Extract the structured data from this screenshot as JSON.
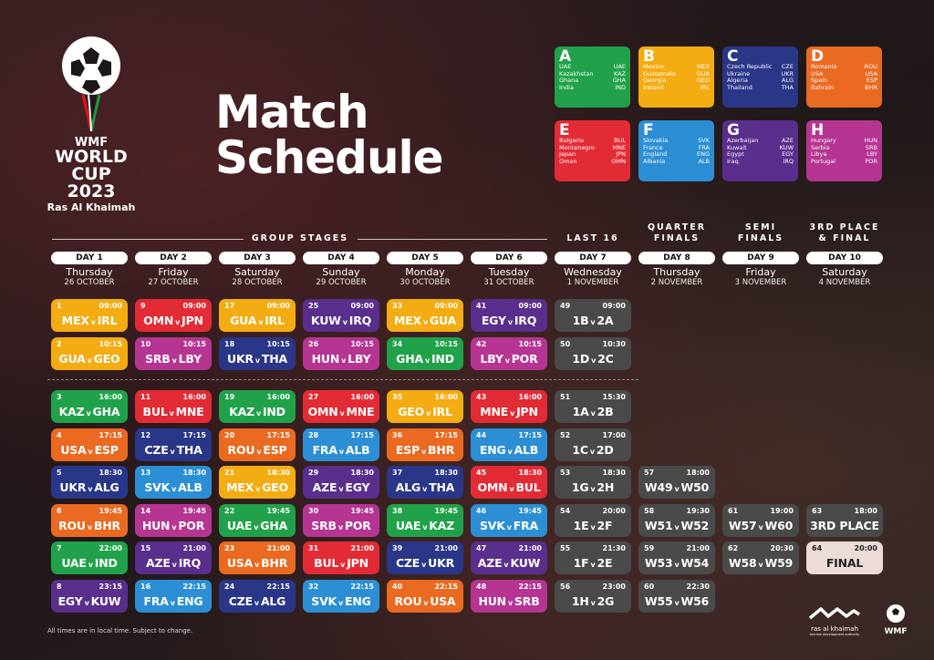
{
  "logo": {
    "wmf": "WMF",
    "world": "WORLD",
    "cup": "CUP 2023",
    "city": "Ras Al Khaimah"
  },
  "title_line1": "Match",
  "title_line2": "Schedule",
  "groups": [
    {
      "letter": "A",
      "color": "#21a24a",
      "rows": [
        [
          "UAE",
          "UAE"
        ],
        [
          "Kazakhstan",
          "KAZ"
        ],
        [
          "Ghana",
          "GHA"
        ],
        [
          "India",
          "IND"
        ]
      ]
    },
    {
      "letter": "B",
      "color": "#f4ac13",
      "rows": [
        [
          "Mexico",
          "MEX"
        ],
        [
          "Guatemala",
          "GUA"
        ],
        [
          "Georgia",
          "GEO"
        ],
        [
          "Ireland",
          "IRL"
        ]
      ]
    },
    {
      "letter": "C",
      "color": "#2a3688",
      "rows": [
        [
          "Czech Republic",
          "CZE"
        ],
        [
          "Ukraine",
          "UKR"
        ],
        [
          "Algeria",
          "ALG"
        ],
        [
          "Thailand",
          "THA"
        ]
      ]
    },
    {
      "letter": "D",
      "color": "#ea6a21",
      "rows": [
        [
          "Romania",
          "ROU"
        ],
        [
          "USA",
          "USA"
        ],
        [
          "Spain",
          "ESP"
        ],
        [
          "Bahrain",
          "BHR"
        ]
      ]
    },
    {
      "letter": "E",
      "color": "#e32b35",
      "rows": [
        [
          "Bulgaria",
          "BUL"
        ],
        [
          "Montenegro",
          "MNE"
        ],
        [
          "Japan",
          "JPN"
        ],
        [
          "Oman",
          "OMN"
        ]
      ]
    },
    {
      "letter": "F",
      "color": "#2c8fd5",
      "rows": [
        [
          "Slovakia",
          "SVK"
        ],
        [
          "France",
          "FRA"
        ],
        [
          "England",
          "ENG"
        ],
        [
          "Albania",
          "ALB"
        ]
      ]
    },
    {
      "letter": "G",
      "color": "#5a2e8c",
      "rows": [
        [
          "Azerbaijan",
          "AZE"
        ],
        [
          "Kuwait",
          "KUW"
        ],
        [
          "Egypt",
          "EGY"
        ],
        [
          "Iraq",
          "IRQ"
        ]
      ]
    },
    {
      "letter": "H",
      "color": "#b63593",
      "rows": [
        [
          "Hungary",
          "HUN"
        ],
        [
          "Serbia",
          "SRB"
        ],
        [
          "Libya",
          "LBY"
        ],
        [
          "Portugal",
          "POR"
        ]
      ]
    }
  ],
  "stages": {
    "group": "GROUP STAGES",
    "last16": "LAST 16",
    "qf": "QUARTER FINALS",
    "sf": "SEMI FINALS",
    "final": "3RD PLACE & FINAL"
  },
  "days": [
    {
      "label": "DAY 1",
      "weekday": "Thursday",
      "date": "26 OCTOBER"
    },
    {
      "label": "DAY 2",
      "weekday": "Friday",
      "date": "27 OCTOBER"
    },
    {
      "label": "DAY 3",
      "weekday": "Saturday",
      "date": "28 OCTOBER"
    },
    {
      "label": "DAY 4",
      "weekday": "Sunday",
      "date": "29 OCTOBER"
    },
    {
      "label": "DAY 5",
      "weekday": "Monday",
      "date": "30 OCTOBER"
    },
    {
      "label": "DAY 6",
      "weekday": "Tuesday",
      "date": "31 OCTOBER"
    },
    {
      "label": "DAY 7",
      "weekday": "Wednesday",
      "date": "1 NOVEMBER"
    },
    {
      "label": "DAY 8",
      "weekday": "Thursday",
      "date": "2 NOVEMBER"
    },
    {
      "label": "DAY 9",
      "weekday": "Friday",
      "date": "3 NOVEMBER"
    },
    {
      "label": "DAY 10",
      "weekday": "Saturday",
      "date": "4 NOVEMBER"
    }
  ],
  "matches": [
    {
      "day": 1,
      "row": 1,
      "num": "1",
      "time": "09:00",
      "t1": "MEX",
      "t2": "IRL",
      "color": "#f4ac13"
    },
    {
      "day": 1,
      "row": 2,
      "num": "2",
      "time": "10:15",
      "t1": "GUA",
      "t2": "GEO",
      "color": "#f4ac13"
    },
    {
      "day": 1,
      "row": 3,
      "num": "3",
      "time": "16:00",
      "t1": "KAZ",
      "t2": "GHA",
      "color": "#21a24a"
    },
    {
      "day": 1,
      "row": 4,
      "num": "4",
      "time": "17:15",
      "t1": "USA",
      "t2": "ESP",
      "color": "#ea6a21"
    },
    {
      "day": 1,
      "row": 5,
      "num": "5",
      "time": "18:30",
      "t1": "UKR",
      "t2": "ALG",
      "color": "#2a3688"
    },
    {
      "day": 1,
      "row": 6,
      "num": "6",
      "time": "19:45",
      "t1": "ROU",
      "t2": "BHR",
      "color": "#ea6a21"
    },
    {
      "day": 1,
      "row": 7,
      "num": "7",
      "time": "22:00",
      "t1": "UAE",
      "t2": "IND",
      "color": "#21a24a"
    },
    {
      "day": 1,
      "row": 8,
      "num": "8",
      "time": "23:15",
      "t1": "EGY",
      "t2": "KUW",
      "color": "#5a2e8c"
    },
    {
      "day": 2,
      "row": 1,
      "num": "9",
      "time": "09:00",
      "t1": "OMN",
      "t2": "JPN",
      "color": "#e32b35"
    },
    {
      "day": 2,
      "row": 2,
      "num": "10",
      "time": "10:15",
      "t1": "SRB",
      "t2": "LBY",
      "color": "#b63593"
    },
    {
      "day": 2,
      "row": 3,
      "num": "11",
      "time": "16:00",
      "t1": "BUL",
      "t2": "MNE",
      "color": "#e32b35"
    },
    {
      "day": 2,
      "row": 4,
      "num": "12",
      "time": "17:15",
      "t1": "CZE",
      "t2": "THA",
      "color": "#2a3688"
    },
    {
      "day": 2,
      "row": 5,
      "num": "13",
      "time": "18:30",
      "t1": "SVK",
      "t2": "ALB",
      "color": "#2c8fd5"
    },
    {
      "day": 2,
      "row": 6,
      "num": "14",
      "time": "19:45",
      "t1": "HUN",
      "t2": "POR",
      "color": "#b63593"
    },
    {
      "day": 2,
      "row": 7,
      "num": "15",
      "time": "21:00",
      "t1": "AZE",
      "t2": "IRQ",
      "color": "#5a2e8c"
    },
    {
      "day": 2,
      "row": 8,
      "num": "16",
      "time": "22:15",
      "t1": "FRA",
      "t2": "ENG",
      "color": "#2c8fd5"
    },
    {
      "day": 3,
      "row": 1,
      "num": "17",
      "time": "09:00",
      "t1": "GUA",
      "t2": "IRL",
      "color": "#f4ac13"
    },
    {
      "day": 3,
      "row": 2,
      "num": "18",
      "time": "10:15",
      "t1": "UKR",
      "t2": "THA",
      "color": "#2a3688"
    },
    {
      "day": 3,
      "row": 3,
      "num": "19",
      "time": "16:00",
      "t1": "KAZ",
      "t2": "IND",
      "color": "#21a24a"
    },
    {
      "day": 3,
      "row": 4,
      "num": "20",
      "time": "17:15",
      "t1": "ROU",
      "t2": "ESP",
      "color": "#ea6a21"
    },
    {
      "day": 3,
      "row": 5,
      "num": "21",
      "time": "18:30",
      "t1": "MEX",
      "t2": "GEO",
      "color": "#f4ac13"
    },
    {
      "day": 3,
      "row": 6,
      "num": "22",
      "time": "19:45",
      "t1": "UAE",
      "t2": "GHA",
      "color": "#21a24a"
    },
    {
      "day": 3,
      "row": 7,
      "num": "23",
      "time": "21:00",
      "t1": "USA",
      "t2": "BHR",
      "color": "#ea6a21"
    },
    {
      "day": 3,
      "row": 8,
      "num": "24",
      "time": "22:15",
      "t1": "CZE",
      "t2": "ALG",
      "color": "#2a3688"
    },
    {
      "day": 4,
      "row": 1,
      "num": "25",
      "time": "09:00",
      "t1": "KUW",
      "t2": "IRQ",
      "color": "#5a2e8c"
    },
    {
      "day": 4,
      "row": 2,
      "num": "26",
      "time": "10:15",
      "t1": "HUN",
      "t2": "LBY",
      "color": "#b63593"
    },
    {
      "day": 4,
      "row": 3,
      "num": "27",
      "time": "16:00",
      "t1": "OMN",
      "t2": "MNE",
      "color": "#e32b35"
    },
    {
      "day": 4,
      "row": 4,
      "num": "28",
      "time": "17:15",
      "t1": "FRA",
      "t2": "ALB",
      "color": "#2c8fd5"
    },
    {
      "day": 4,
      "row": 5,
      "num": "29",
      "time": "18:30",
      "t1": "AZE",
      "t2": "EGY",
      "color": "#5a2e8c"
    },
    {
      "day": 4,
      "row": 6,
      "num": "30",
      "time": "19:45",
      "t1": "SRB",
      "t2": "POR",
      "color": "#b63593"
    },
    {
      "day": 4,
      "row": 7,
      "num": "31",
      "time": "21:00",
      "t1": "BUL",
      "t2": "JPN",
      "color": "#e32b35"
    },
    {
      "day": 4,
      "row": 8,
      "num": "32",
      "time": "22:15",
      "t1": "SVK",
      "t2": "ENG",
      "color": "#2c8fd5"
    },
    {
      "day": 5,
      "row": 1,
      "num": "33",
      "time": "09:00",
      "t1": "MEX",
      "t2": "GUA",
      "color": "#f4ac13"
    },
    {
      "day": 5,
      "row": 2,
      "num": "34",
      "time": "10:15",
      "t1": "GHA",
      "t2": "IND",
      "color": "#21a24a"
    },
    {
      "day": 5,
      "row": 3,
      "num": "35",
      "time": "16:00",
      "t1": "GEO",
      "t2": "IRL",
      "color": "#f4ac13"
    },
    {
      "day": 5,
      "row": 4,
      "num": "36",
      "time": "17:15",
      "t1": "ESP",
      "t2": "BHR",
      "color": "#ea6a21"
    },
    {
      "day": 5,
      "row": 5,
      "num": "37",
      "time": "18:30",
      "t1": "ALG",
      "t2": "THA",
      "color": "#2a3688"
    },
    {
      "day": 5,
      "row": 6,
      "num": "38",
      "time": "19:45",
      "t1": "UAE",
      "t2": "KAZ",
      "color": "#21a24a"
    },
    {
      "day": 5,
      "row": 7,
      "num": "39",
      "time": "21:00",
      "t1": "CZE",
      "t2": "UKR",
      "color": "#2a3688"
    },
    {
      "day": 5,
      "row": 8,
      "num": "40",
      "time": "22:15",
      "t1": "ROU",
      "t2": "USA",
      "color": "#ea6a21"
    },
    {
      "day": 6,
      "row": 1,
      "num": "41",
      "time": "09:00",
      "t1": "EGY",
      "t2": "IRQ",
      "color": "#5a2e8c"
    },
    {
      "day": 6,
      "row": 2,
      "num": "42",
      "time": "10:15",
      "t1": "LBY",
      "t2": "POR",
      "color": "#b63593"
    },
    {
      "day": 6,
      "row": 3,
      "num": "43",
      "time": "16:00",
      "t1": "MNE",
      "t2": "JPN",
      "color": "#e32b35"
    },
    {
      "day": 6,
      "row": 4,
      "num": "44",
      "time": "17:15",
      "t1": "ENG",
      "t2": "ALB",
      "color": "#2c8fd5"
    },
    {
      "day": 6,
      "row": 5,
      "num": "45",
      "time": "18:30",
      "t1": "OMN",
      "t2": "BUL",
      "color": "#e32b35"
    },
    {
      "day": 6,
      "row": 6,
      "num": "46",
      "time": "19:45",
      "t1": "SVK",
      "t2": "FRA",
      "color": "#2c8fd5"
    },
    {
      "day": 6,
      "row": 7,
      "num": "47",
      "time": "21:00",
      "t1": "AZE",
      "t2": "KUW",
      "color": "#5a2e8c"
    },
    {
      "day": 6,
      "row": 8,
      "num": "48",
      "time": "22:15",
      "t1": "HUN",
      "t2": "SRB",
      "color": "#b63593"
    },
    {
      "day": 7,
      "row": 1,
      "num": "49",
      "time": "09:00",
      "t1": "1B",
      "t2": "2A",
      "color": "#4a4a4a"
    },
    {
      "day": 7,
      "row": 2,
      "num": "50",
      "time": "10:30",
      "t1": "1D",
      "t2": "2C",
      "color": "#4a4a4a"
    },
    {
      "day": 7,
      "row": 3,
      "num": "51",
      "time": "15:30",
      "t1": "1A",
      "t2": "2B",
      "color": "#4a4a4a"
    },
    {
      "day": 7,
      "row": 4,
      "num": "52",
      "time": "17:00",
      "t1": "1C",
      "t2": "2D",
      "color": "#4a4a4a"
    },
    {
      "day": 7,
      "row": 5,
      "num": "53",
      "time": "18:30",
      "t1": "1G",
      "t2": "2H",
      "color": "#4a4a4a"
    },
    {
      "day": 7,
      "row": 6,
      "num": "54",
      "time": "20:00",
      "t1": "1E",
      "t2": "2F",
      "color": "#4a4a4a"
    },
    {
      "day": 7,
      "row": 7,
      "num": "55",
      "time": "21:30",
      "t1": "1F",
      "t2": "2E",
      "color": "#4a4a4a"
    },
    {
      "day": 7,
      "row": 8,
      "num": "56",
      "time": "23:00",
      "t1": "1H",
      "t2": "2G",
      "color": "#4a4a4a"
    },
    {
      "day": 8,
      "row": 5,
      "num": "57",
      "time": "18:00",
      "t1": "W49",
      "t2": "W50",
      "color": "#4a4a4a"
    },
    {
      "day": 8,
      "row": 6,
      "num": "58",
      "time": "19:30",
      "t1": "W51",
      "t2": "W52",
      "color": "#4a4a4a"
    },
    {
      "day": 8,
      "row": 7,
      "num": "59",
      "time": "21:00",
      "t1": "W53",
      "t2": "W54",
      "color": "#4a4a4a"
    },
    {
      "day": 8,
      "row": 8,
      "num": "60",
      "time": "22:30",
      "t1": "W55",
      "t2": "W56",
      "color": "#4a4a4a"
    },
    {
      "day": 9,
      "row": 6,
      "num": "61",
      "time": "19:00",
      "t1": "W57",
      "t2": "W60",
      "color": "#4a4a4a"
    },
    {
      "day": 9,
      "row": 7,
      "num": "62",
      "time": "20:30",
      "t1": "W58",
      "t2": "W59",
      "color": "#4a4a4a"
    },
    {
      "day": 10,
      "row": 6,
      "num": "63",
      "time": "18:00",
      "title": "3RD PLACE",
      "color": "#4a4a4a"
    },
    {
      "day": 10,
      "row": 7,
      "num": "64",
      "time": "20:00",
      "title": "FINAL",
      "color": "#ecdcd8",
      "dark": true
    }
  ],
  "footnote": "All times are in local time. Subject to change.",
  "brand_rak": {
    "name": "ras al khaimah",
    "sub": "tourism development authority"
  },
  "brand_wmf": "WMF",
  "versus": "v"
}
